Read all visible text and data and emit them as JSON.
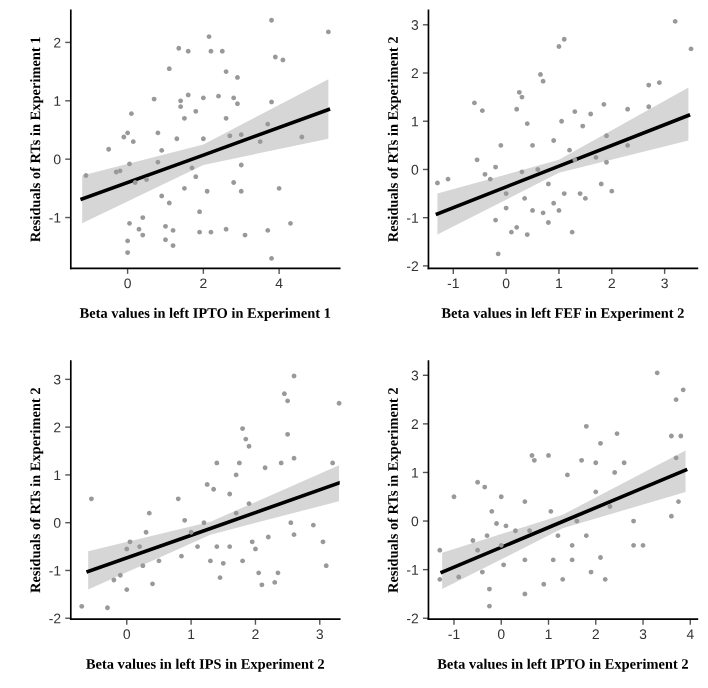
{
  "chart_data": [
    {
      "type": "scatter",
      "xlabel": "Beta values in left IPTO in Experiment 1",
      "ylabel": "Residuals of RTs in Experiment 1",
      "xlim": [
        -1.5,
        5.6
      ],
      "ylim": [
        -1.87,
        2.55
      ],
      "xticks": [
        0,
        2,
        4
      ],
      "yticks": [
        -1,
        0,
        1,
        2
      ],
      "series": [
        {
          "type": "scatter",
          "color": "#999999",
          "x": [
            -1.1,
            -0.5,
            -0.3,
            -0.2,
            -0.1,
            0,
            0.05,
            0.1,
            0.15,
            0.05,
            0,
            0,
            0.2,
            0.3,
            0.4,
            0.4,
            0.5,
            0.7,
            0.8,
            0.8,
            0.9,
            0.9,
            1.0,
            1.0,
            1.1,
            1.1,
            1.2,
            1.2,
            1.3,
            1.35,
            1.4,
            1.4,
            1.5,
            1.5,
            1.6,
            1.6,
            1.7,
            1.8,
            1.8,
            1.9,
            1.9,
            2.0,
            2.0,
            2.1,
            2.15,
            2.2,
            2.2,
            2.4,
            2.5,
            2.6,
            2.6,
            2.6,
            2.7,
            2.8,
            2.8,
            2.9,
            2.9,
            3.0,
            3.0,
            3.0,
            3.1,
            3.5,
            3.7,
            3.7,
            3.8,
            3.8,
            3.8,
            3.9,
            4.0,
            4.1,
            4.3,
            4.6,
            5.3
          ],
          "values": [
            -0.28,
            0.17,
            -0.22,
            -0.2,
            0.38,
            0.45,
            -0.08,
            0.78,
            0.3,
            -1.1,
            -1.4,
            -1.6,
            -0.4,
            -1.2,
            -1.3,
            -1.0,
            -0.35,
            1.03,
            0.45,
            -0.05,
            0.15,
            -0.63,
            -1.15,
            -1.38,
            1.55,
            -0.75,
            -1.22,
            -1.48,
            0.35,
            1.9,
            0.9,
            1.0,
            0.7,
            -0.5,
            1.85,
            1.1,
            -0.15,
            0.82,
            -0.3,
            -1.25,
            -0.9,
            0.35,
            1.05,
            -0.55,
            2.1,
            1.85,
            -1.25,
            1.08,
            1.85,
            1.5,
            0.7,
            -1.2,
            0.4,
            1.05,
            -0.4,
            1.4,
            0.95,
            0.42,
            -0.1,
            -0.55,
            -1.3,
            0.3,
            0.6,
            -1.22,
            2.38,
            0.98,
            -1.7,
            1.75,
            -0.5,
            1.7,
            -1.1,
            0.38,
            2.18
          ]
        },
        {
          "type": "line",
          "color": "#000000",
          "x": [
            -1.2,
            2,
            5.3
          ],
          "values": [
            -0.68,
            0.07,
            0.85
          ],
          "lower": [
            -1.1,
            -0.1,
            0.35
          ],
          "upper": [
            -0.28,
            0.25,
            1.37
          ]
        }
      ]
    },
    {
      "type": "scatter",
      "xlabel": "Beta values in left FEF in Experiment 2",
      "ylabel": "Residuals of RTs in Experiment 2",
      "xlim": [
        -1.47,
        3.62
      ],
      "ylim": [
        -2.05,
        3.3
      ],
      "xticks": [
        -1,
        0,
        1,
        2,
        3
      ],
      "yticks": [
        -2,
        -1,
        0,
        1,
        2,
        3
      ],
      "series": [
        {
          "type": "scatter",
          "color": "#999999",
          "x": [
            -1.3,
            -1.1,
            -0.6,
            -0.55,
            -0.45,
            -0.4,
            -0.3,
            -0.2,
            -0.2,
            -0.15,
            -0.1,
            0,
            0.0,
            0.1,
            0.2,
            0.2,
            0.25,
            0.3,
            0.3,
            0.35,
            0.4,
            0.4,
            0.5,
            0.5,
            0.6,
            0.65,
            0.7,
            0.7,
            0.8,
            0.8,
            0.9,
            0.9,
            1.0,
            1.0,
            1.05,
            1.1,
            1.1,
            1.2,
            1.25,
            1.3,
            1.3,
            1.4,
            1.45,
            1.5,
            1.6,
            1.7,
            1.8,
            1.85,
            1.9,
            1.9,
            2.0,
            2.3,
            2.3,
            2.7,
            2.7,
            2.9,
            3.2,
            3.5
          ],
          "values": [
            -0.28,
            -0.2,
            1.38,
            0.2,
            1.22,
            -0.1,
            -0.2,
            0.05,
            -1.05,
            -1.75,
            0.5,
            -0.5,
            -0.8,
            -1.3,
            -1.2,
            1.25,
            1.6,
            -0.05,
            1.5,
            -0.6,
            0.95,
            -1.35,
            -0.85,
            0.5,
            0.0,
            1.97,
            1.83,
            -0.9,
            -1.1,
            -0.3,
            0.6,
            -0.7,
            2.55,
            -0.85,
            1.0,
            2.7,
            -0.5,
            0.4,
            -1.3,
            1.2,
            0.2,
            -0.5,
            0.9,
            -0.6,
            1.15,
            0.25,
            -0.3,
            1.35,
            0.7,
            0.15,
            -0.45,
            1.25,
            0.5,
            1.75,
            1.3,
            1.8,
            3.07,
            2.5
          ]
        },
        {
          "type": "line",
          "color": "#000000",
          "x": [
            -1.3,
            1,
            3.45
          ],
          "values": [
            -0.92,
            0.07,
            1.12
          ],
          "lower": [
            -1.35,
            -0.07,
            0.6
          ],
          "upper": [
            -0.5,
            0.2,
            1.7
          ]
        }
      ]
    },
    {
      "type": "scatter",
      "xlabel": "Beta values in left IPS in Experiment 2",
      "ylabel": "Residuals of RTs in Experiment 2",
      "xlim": [
        -0.87,
        3.31
      ],
      "ylim": [
        -2.02,
        3.38
      ],
      "xticks": [
        0,
        1,
        2,
        3
      ],
      "yticks": [
        -2,
        -1,
        0,
        1,
        2,
        3
      ],
      "series": [
        {
          "type": "scatter",
          "color": "#999999",
          "x": [
            -0.7,
            -0.55,
            -0.3,
            -0.2,
            -0.1,
            0,
            0,
            0.05,
            0.2,
            0.25,
            0.3,
            0.35,
            0.4,
            0.5,
            0.8,
            0.85,
            0.9,
            1.0,
            1.1,
            1.2,
            1.25,
            1.3,
            1.35,
            1.4,
            1.4,
            1.45,
            1.5,
            1.6,
            1.6,
            1.7,
            1.7,
            1.75,
            1.8,
            1.8,
            1.85,
            1.9,
            1.9,
            1.95,
            2.0,
            2.05,
            2.1,
            2.15,
            2.2,
            2.3,
            2.35,
            2.4,
            2.45,
            2.5,
            2.5,
            2.55,
            2.6,
            2.6,
            2.6,
            2.9,
            3.05,
            3.1,
            3.2,
            3.3
          ],
          "values": [
            -1.75,
            0.5,
            -1.78,
            -1.2,
            -1.1,
            -1.4,
            -0.55,
            -0.4,
            -0.5,
            -0.9,
            -0.2,
            0.2,
            -1.28,
            -0.8,
            0.5,
            -0.7,
            0.05,
            -0.2,
            -0.5,
            0.0,
            0.8,
            -0.8,
            0.7,
            1.25,
            -0.5,
            -1.15,
            -0.85,
            0.6,
            -0.5,
            1.0,
            0.2,
            1.25,
            1.97,
            -0.8,
            1.75,
            1.6,
            0.4,
            -0.4,
            -0.55,
            -1.05,
            -1.3,
            1.15,
            -0.3,
            -1.25,
            -1.05,
            1.25,
            2.7,
            1.85,
            2.55,
            0.0,
            3.07,
            1.35,
            -0.25,
            -0.05,
            -0.4,
            -0.9,
            1.25,
            2.5
          ]
        },
        {
          "type": "line",
          "color": "#000000",
          "x": [
            -0.6,
            1.3,
            3.3
          ],
          "values": [
            -1.02,
            -0.12,
            0.83
          ],
          "lower": [
            -1.4,
            -0.25,
            0.45
          ],
          "upper": [
            -0.6,
            0.02,
            1.2
          ]
        }
      ]
    },
    {
      "type": "scatter",
      "xlabel": "Beta values in left IPTO in Experiment 2",
      "ylabel": "Residuals of RTs in Experiment 2",
      "xlim": [
        -1.54,
        4.15
      ],
      "ylim": [
        -2.02,
        3.29
      ],
      "xticks": [
        -1,
        0,
        1,
        2,
        3,
        4
      ],
      "yticks": [
        -2,
        -1,
        0,
        1,
        2,
        3
      ],
      "series": [
        {
          "type": "scatter",
          "color": "#999999",
          "x": [
            -1.3,
            -1.3,
            -1.0,
            -0.9,
            -0.6,
            -0.5,
            -0.5,
            -0.4,
            -0.35,
            -0.3,
            -0.25,
            -0.25,
            -0.2,
            -0.1,
            0,
            0,
            0.05,
            0.1,
            0.3,
            0.5,
            0.5,
            0.5,
            0.6,
            0.65,
            0.7,
            0.9,
            1.0,
            1.05,
            1.1,
            1.2,
            1.3,
            1.4,
            1.5,
            1.5,
            1.6,
            1.7,
            1.8,
            1.8,
            1.9,
            2.0,
            2.0,
            2.1,
            2.1,
            2.2,
            2.3,
            2.4,
            2.45,
            2.6,
            2.8,
            2.8,
            3.0,
            3.3,
            3.6,
            3.6,
            3.7,
            3.7,
            3.75,
            3.8,
            3.85
          ],
          "values": [
            -0.6,
            -1.2,
            0.5,
            -1.15,
            -0.4,
            0.8,
            -0.6,
            -1.05,
            0.7,
            -0.3,
            -1.4,
            -1.75,
            0.2,
            -0.05,
            -0.5,
            0.5,
            -0.9,
            -0.1,
            -0.2,
            0.4,
            -0.8,
            -1.5,
            -0.2,
            1.35,
            1.25,
            -1.3,
            1.35,
            0.2,
            -0.8,
            -0.3,
            -1.2,
            0.95,
            -0.5,
            -0.8,
            0.0,
            1.25,
            1.95,
            -0.3,
            -1.05,
            1.2,
            0.6,
            1.6,
            -0.75,
            -1.2,
            0.3,
            1.0,
            1.8,
            1.2,
            0.0,
            -0.5,
            -0.5,
            3.05,
            1.75,
            0.1,
            2.5,
            1.3,
            0.4,
            1.75,
            2.7
          ]
        },
        {
          "type": "line",
          "color": "#000000",
          "x": [
            -1.25,
            1.3,
            3.9
          ],
          "values": [
            -1.05,
            -0.01,
            1.05
          ],
          "lower": [
            -1.4,
            -0.15,
            0.6
          ],
          "upper": [
            -0.65,
            0.13,
            1.45
          ]
        }
      ]
    }
  ]
}
